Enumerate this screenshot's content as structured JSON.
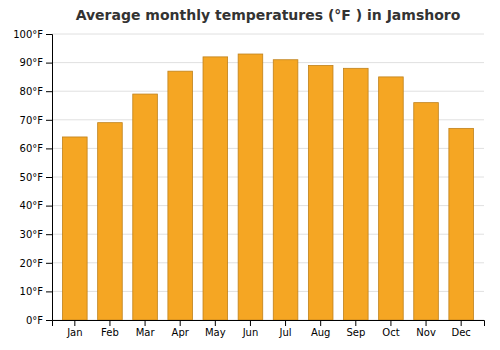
{
  "chart_data": {
    "type": "bar",
    "title": "Average monthly temperatures (°F ) in Jamshoro",
    "categories": [
      "Jan",
      "Feb",
      "Mar",
      "Apr",
      "May",
      "Jun",
      "Jul",
      "Aug",
      "Sep",
      "Oct",
      "Nov",
      "Dec"
    ],
    "values": [
      64,
      69,
      79,
      87,
      92,
      93,
      91,
      89,
      88,
      85,
      76,
      67
    ],
    "color": "#F5A623",
    "ylim": [
      0,
      100
    ],
    "yticks": [
      {
        "value": 0,
        "label": "0°F"
      },
      {
        "value": 10,
        "label": "10°F"
      },
      {
        "value": 20,
        "label": "20°F"
      },
      {
        "value": 30,
        "label": "30°F"
      },
      {
        "value": 40,
        "label": "40°F"
      },
      {
        "value": 50,
        "label": "50°F"
      },
      {
        "value": 60,
        "label": "60°F"
      },
      {
        "value": 70,
        "label": "70°F"
      },
      {
        "value": 80,
        "label": "80°F"
      },
      {
        "value": 90,
        "label": "90°F"
      },
      {
        "value": 100,
        "label": "100°F"
      }
    ],
    "grid": true
  }
}
